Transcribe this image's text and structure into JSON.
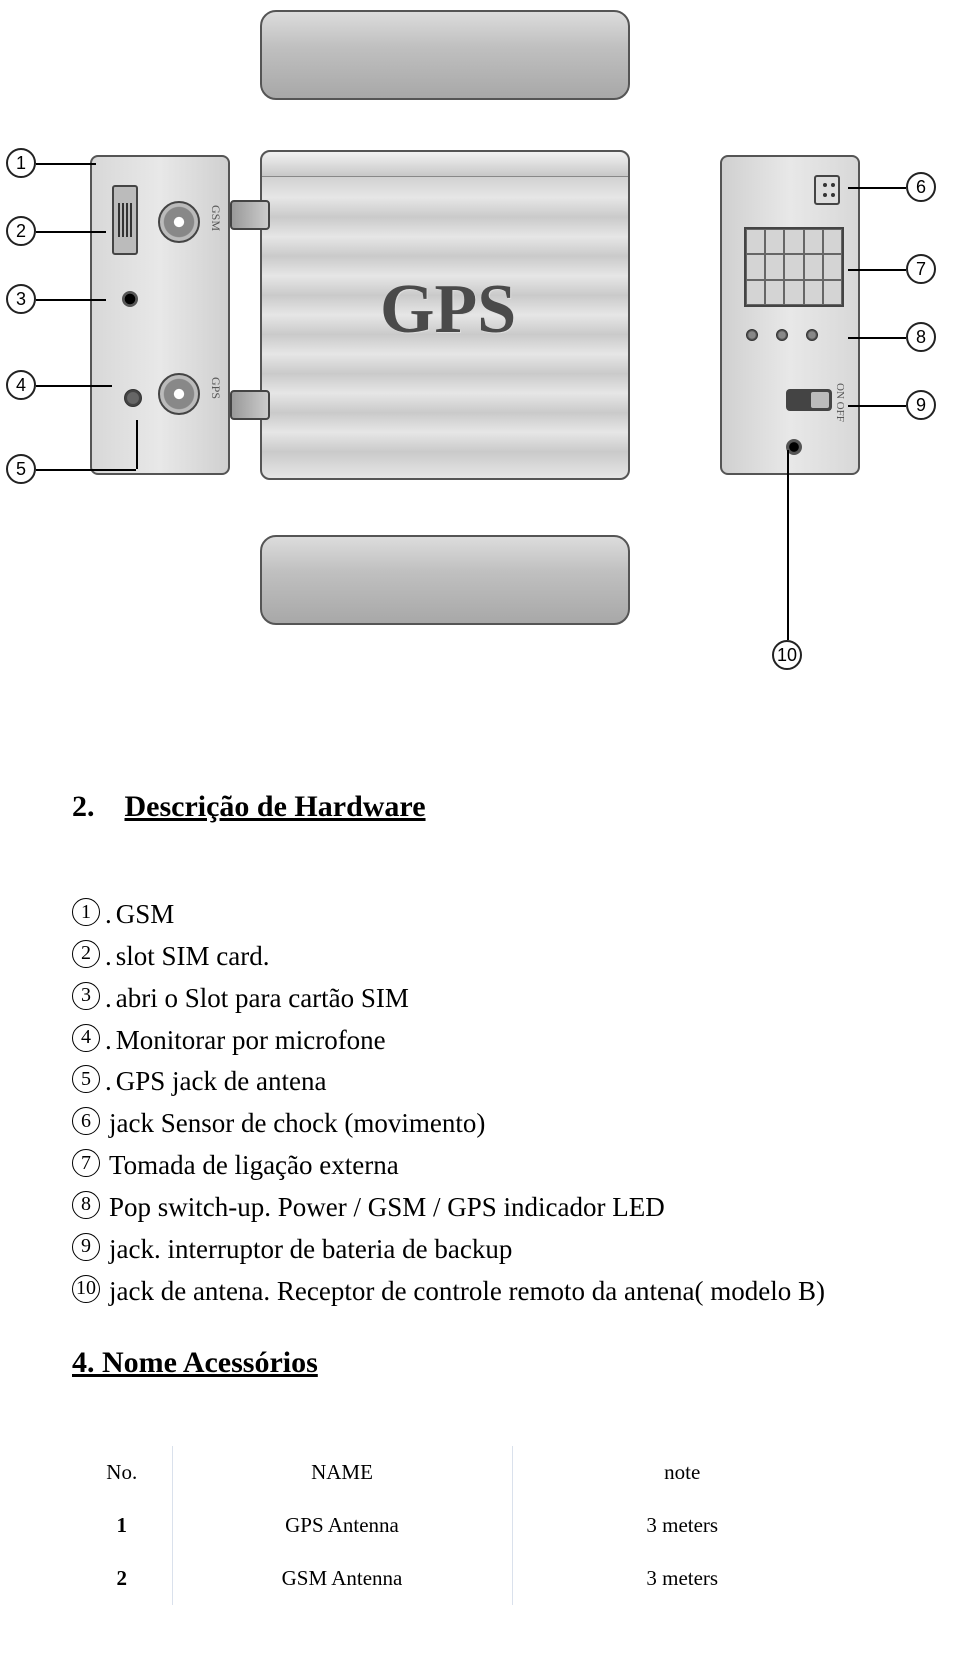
{
  "diagram": {
    "gps_label": "GPS",
    "left_panel": {
      "gsm_label": "GSM",
      "gps_label": "GPS"
    },
    "right_panel": {
      "on_off": "ON  OFF"
    },
    "callouts": {
      "1": "1",
      "2": "2",
      "3": "3",
      "4": "4",
      "5": "5",
      "6": "6",
      "7": "7",
      "8": "8",
      "9": "9",
      "10": "10"
    }
  },
  "section_num": "2.",
  "section_title": "Descrição de Hardware",
  "items": [
    {
      "num": "1",
      "suffix": ".",
      "text": "GSM"
    },
    {
      "num": "2",
      "suffix": ".",
      "text": "slot SIM card."
    },
    {
      "num": "3",
      "suffix": ".",
      "text": "abri o Slot para cartão SIM"
    },
    {
      "num": "4",
      "suffix": ".",
      "text": "Monitorar por microfone"
    },
    {
      "num": "5",
      "suffix": ".",
      "text": "GPS jack de antena"
    },
    {
      "num": "6",
      "suffix": "",
      "text": "jack Sensor de chock (movimento)"
    },
    {
      "num": "7",
      "suffix": "",
      "text": "Tomada de ligação externa"
    },
    {
      "num": "8",
      "suffix": "",
      "text": "Pop switch-up. Power / GSM / GPS indicador LED"
    },
    {
      "num": "9",
      "suffix": "",
      "text": "jack. interruptor de bateria de backup"
    },
    {
      "num": "10",
      "suffix": "",
      "text": "jack de antena. Receptor de controle remoto da antena( modelo B)"
    }
  ],
  "sub_title": "4. Nome Acessórios",
  "table": {
    "headers": [
      "No.",
      "NAME",
      "note"
    ],
    "rows": [
      [
        "1",
        "GPS Antenna",
        "3 meters"
      ],
      [
        "2",
        "GSM Antenna",
        "3 meters"
      ]
    ]
  },
  "colors": {
    "text": "#000000",
    "bg": "#ffffff",
    "metal_light": "#e6e6e6",
    "metal_dark": "#a8a8a8",
    "border": "#555555"
  }
}
